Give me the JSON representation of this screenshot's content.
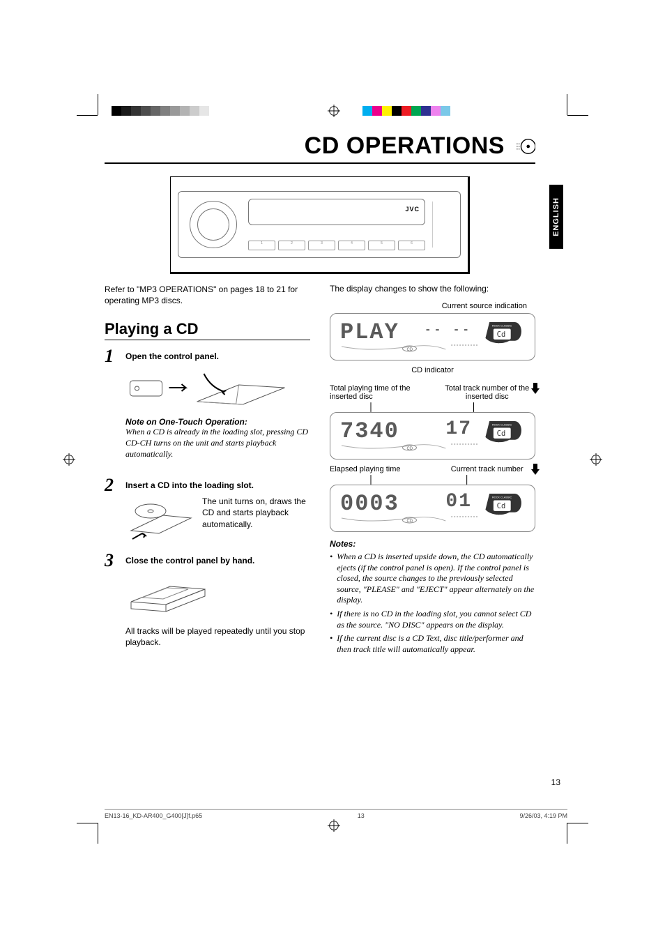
{
  "print": {
    "gray_shades": [
      "#000000",
      "#1a1a1a",
      "#333333",
      "#4d4d4d",
      "#666666",
      "#808080",
      "#999999",
      "#b3b3b3",
      "#cccccc",
      "#e6e6e6",
      "#ffffff"
    ],
    "colors": [
      "#00aeef",
      "#ec008c",
      "#fff200",
      "#000000",
      "#ed1c24",
      "#00a651",
      "#2e3192",
      "#ee82ee",
      "#7ac8e8"
    ]
  },
  "title": "CD OPERATIONS",
  "lang_tab": "ENGLISH",
  "unit": {
    "brand": "JVC",
    "presets": [
      "1",
      "2",
      "3",
      "4",
      "5",
      "6"
    ]
  },
  "intro": "Refer to \"MP3 OPERATIONS\" on pages 18 to 21 for operating MP3 discs.",
  "section": "Playing a CD",
  "steps": [
    {
      "num": "1",
      "title": "Open the control panel.",
      "note_h": "Note on One-Touch Operation:",
      "note_p": "When a CD is already in the loading slot, pressing CD CD-CH turns on the unit and starts playback automatically."
    },
    {
      "num": "2",
      "title": "Insert a CD into the loading slot.",
      "text": "The unit turns on, draws the CD and starts playback automatically."
    },
    {
      "num": "3",
      "title": "Close the control panel by hand.",
      "text": "All tracks will be played repeatedly until you stop playback."
    }
  ],
  "right": {
    "p1": "The display changes to show the following:",
    "label_source": "Current source indication",
    "label_cd_ind": "CD indicator",
    "label_total_time": "Total playing time of the inserted disc",
    "label_total_tracks": "Total track number of the inserted disc",
    "label_elapsed": "Elapsed playing time",
    "label_track": "Current track number",
    "lcd1_text": "PLAY",
    "lcd1_aux": "-- --",
    "lcd2_left": "7340",
    "lcd2_right": "17",
    "lcd3_left": "0003",
    "lcd3_right": "01",
    "badge_main": "Cd",
    "badge_top": "ROCK CLASSIC",
    "badge_bottom": "USER  JAZZ",
    "notes_h": "Notes:",
    "notes": [
      "When a CD is inserted upside down, the CD automatically ejects (if the control panel is open). If the control panel is closed, the source changes to the previously selected source, \"PLEASE\" and \"EJECT\" appear alternately on the display.",
      "If there is no CD in the loading slot, you cannot select CD as the source. \"NO DISC\" appears on the display.",
      "If the current disc is a CD Text, disc title/performer and then track title will automatically appear."
    ]
  },
  "page_num": "13",
  "footer": {
    "file": "EN13-16_KD-AR400_G400[J]f.p65",
    "pg": "13",
    "date": "9/26/03, 4:19 PM"
  }
}
